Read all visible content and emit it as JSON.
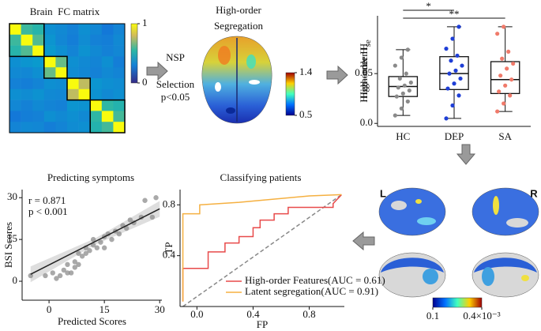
{
  "chart_data": [
    {
      "type": "heatmap",
      "title": "Brain  FC matrix",
      "values": [
        [
          1,
          0.52,
          0.48,
          0.3,
          0.28,
          0.25,
          0.3,
          0.27,
          0.22,
          0.26
        ],
        [
          0.52,
          1,
          0.55,
          0.32,
          0.27,
          0.24,
          0.29,
          0.25,
          0.24,
          0.28
        ],
        [
          0.48,
          0.55,
          1,
          0.34,
          0.3,
          0.26,
          0.31,
          0.28,
          0.25,
          0.27
        ],
        [
          0.3,
          0.32,
          0.34,
          1,
          0.58,
          0.3,
          0.28,
          0.26,
          0.3,
          0.24
        ],
        [
          0.28,
          0.27,
          0.3,
          0.58,
          1,
          0.29,
          0.27,
          0.25,
          0.28,
          0.26
        ],
        [
          0.25,
          0.24,
          0.26,
          0.3,
          0.29,
          1,
          0.72,
          0.32,
          0.3,
          0.29
        ],
        [
          0.3,
          0.29,
          0.31,
          0.28,
          0.27,
          0.72,
          1,
          0.31,
          0.28,
          0.3
        ],
        [
          0.27,
          0.25,
          0.28,
          0.26,
          0.25,
          0.32,
          0.31,
          1,
          0.5,
          0.47
        ],
        [
          0.22,
          0.24,
          0.25,
          0.3,
          0.28,
          0.3,
          0.28,
          0.5,
          1,
          0.53
        ],
        [
          0.26,
          0.28,
          0.27,
          0.24,
          0.26,
          0.29,
          0.3,
          0.47,
          0.53,
          1
        ]
      ],
      "clim": [
        0,
        1
      ],
      "cticks": [
        0,
        1
      ]
    },
    {
      "type": "surface",
      "title": [
        "High-order",
        "Segregation"
      ],
      "annotations": [
        "NSP",
        "Selection",
        "p<0.05"
      ],
      "clim": [
        0.5,
        1.4
      ],
      "cticks": [
        0.5,
        1.4
      ]
    },
    {
      "type": "box",
      "y_label": "High-order H",
      "y_label_sub": "se",
      "categories": [
        "HC",
        "DEP",
        "SA"
      ],
      "colors": [
        "#8a8a8a",
        "#1f3fd6",
        "#f07a6a"
      ],
      "whisker_low": [
        0.008,
        0.005,
        0.012
      ],
      "q1": [
        0.027,
        0.034,
        0.03
      ],
      "median": [
        0.037,
        0.05,
        0.044
      ],
      "q3": [
        0.047,
        0.067,
        0.062
      ],
      "whisker_high": [
        0.074,
        0.097,
        0.097
      ],
      "points": [
        [
          0.008,
          0.015,
          0.022,
          0.027,
          0.03,
          0.033,
          0.036,
          0.038,
          0.041,
          0.045,
          0.05,
          0.058,
          0.066,
          0.074
        ],
        [
          0.005,
          0.018,
          0.028,
          0.035,
          0.04,
          0.045,
          0.05,
          0.053,
          0.058,
          0.063,
          0.068,
          0.075,
          0.085,
          0.097
        ],
        [
          0.012,
          0.02,
          0.028,
          0.032,
          0.038,
          0.044,
          0.048,
          0.055,
          0.06,
          0.065,
          0.072,
          0.09,
          0.097
        ]
      ],
      "significance": [
        "*",
        "**"
      ],
      "ylim": [
        -0.003,
        0.108
      ],
      "yticks": [
        {
          "value": 0,
          "label": "0.0"
        },
        0.05
      ]
    },
    {
      "type": "scatter",
      "title": "Predicting symptoms",
      "x_label": "Predicted Scores",
      "y_label": "BSI Scores",
      "annotations": [
        "r = 0.871",
        "p < 0.001"
      ],
      "color": "#8c8c8c",
      "x": [
        -5,
        -1,
        1,
        2,
        3,
        4,
        5,
        5,
        6,
        7,
        7,
        8,
        8,
        9,
        10,
        10,
        11,
        12,
        12,
        13,
        14,
        15,
        15,
        16,
        17,
        18,
        19,
        20,
        21,
        22,
        23,
        25,
        26,
        28,
        29
      ],
      "y": [
        2,
        2,
        3,
        1,
        2,
        4,
        3,
        6,
        3,
        7,
        5,
        6,
        10,
        9,
        10,
        12,
        11,
        13,
        15,
        12,
        14,
        16,
        12,
        17,
        15,
        18,
        17,
        20,
        19,
        22,
        21,
        23,
        29,
        23,
        30
      ],
      "fit": {
        "x": [
          -5,
          30
        ],
        "y": [
          2.5,
          26
        ]
      },
      "xlim": [
        -7.3,
        30.6
      ],
      "ylim": [
        -6.8,
        32.9
      ],
      "xticks": [
        0,
        15,
        30
      ],
      "yticks": [
        0,
        15,
        30
      ]
    },
    {
      "type": "line",
      "title": "Classifying patients",
      "x_label": "FP",
      "y_label": "TP",
      "series": [
        {
          "name": "High-order Features(AUC = 0.61)",
          "color": "#e84a4a",
          "x": [
            -0.1,
            -0.1,
            0.08,
            0.08,
            0.2,
            0.2,
            0.3,
            0.3,
            0.4,
            0.4,
            0.45,
            0.45,
            0.55,
            0.55,
            0.65,
            0.65,
            0.97,
            0.97,
            1.03
          ],
          "y": [
            0.04,
            0.3,
            0.3,
            0.43,
            0.43,
            0.5,
            0.5,
            0.55,
            0.55,
            0.62,
            0.62,
            0.68,
            0.68,
            0.73,
            0.73,
            0.78,
            0.78,
            0.81,
            0.88
          ]
        },
        {
          "name": "Latent segregation(AUC = 0.91)",
          "color": "#f5b041",
          "x": [
            -0.1,
            -0.1,
            -0.1,
            0.02,
            0.02,
            0.3,
            0.6,
            0.8,
            1.03
          ],
          "y": [
            0.04,
            0.3,
            0.73,
            0.73,
            0.8,
            0.82,
            0.85,
            0.87,
            0.88
          ]
        }
      ],
      "reference": {
        "x": [
          -0.1,
          1.03
        ],
        "y": [
          0,
          0.88
        ]
      },
      "xlim": [
        -0.12,
        1.05
      ],
      "ylim": [
        0,
        0.92
      ],
      "xticks": [
        {
          "value": 0,
          "label": "0.0"
        },
        0.4,
        0.8
      ],
      "yticks": [
        0.4,
        0.8
      ],
      "legend": "lower right"
    },
    {
      "type": "surface",
      "labels": [
        "L",
        "R"
      ],
      "clim": [
        0.1,
        0.4
      ],
      "cticks": [
        0.1,
        {
          "value": 0.4,
          "label": "0.4×10⁻³"
        }
      ]
    }
  ]
}
